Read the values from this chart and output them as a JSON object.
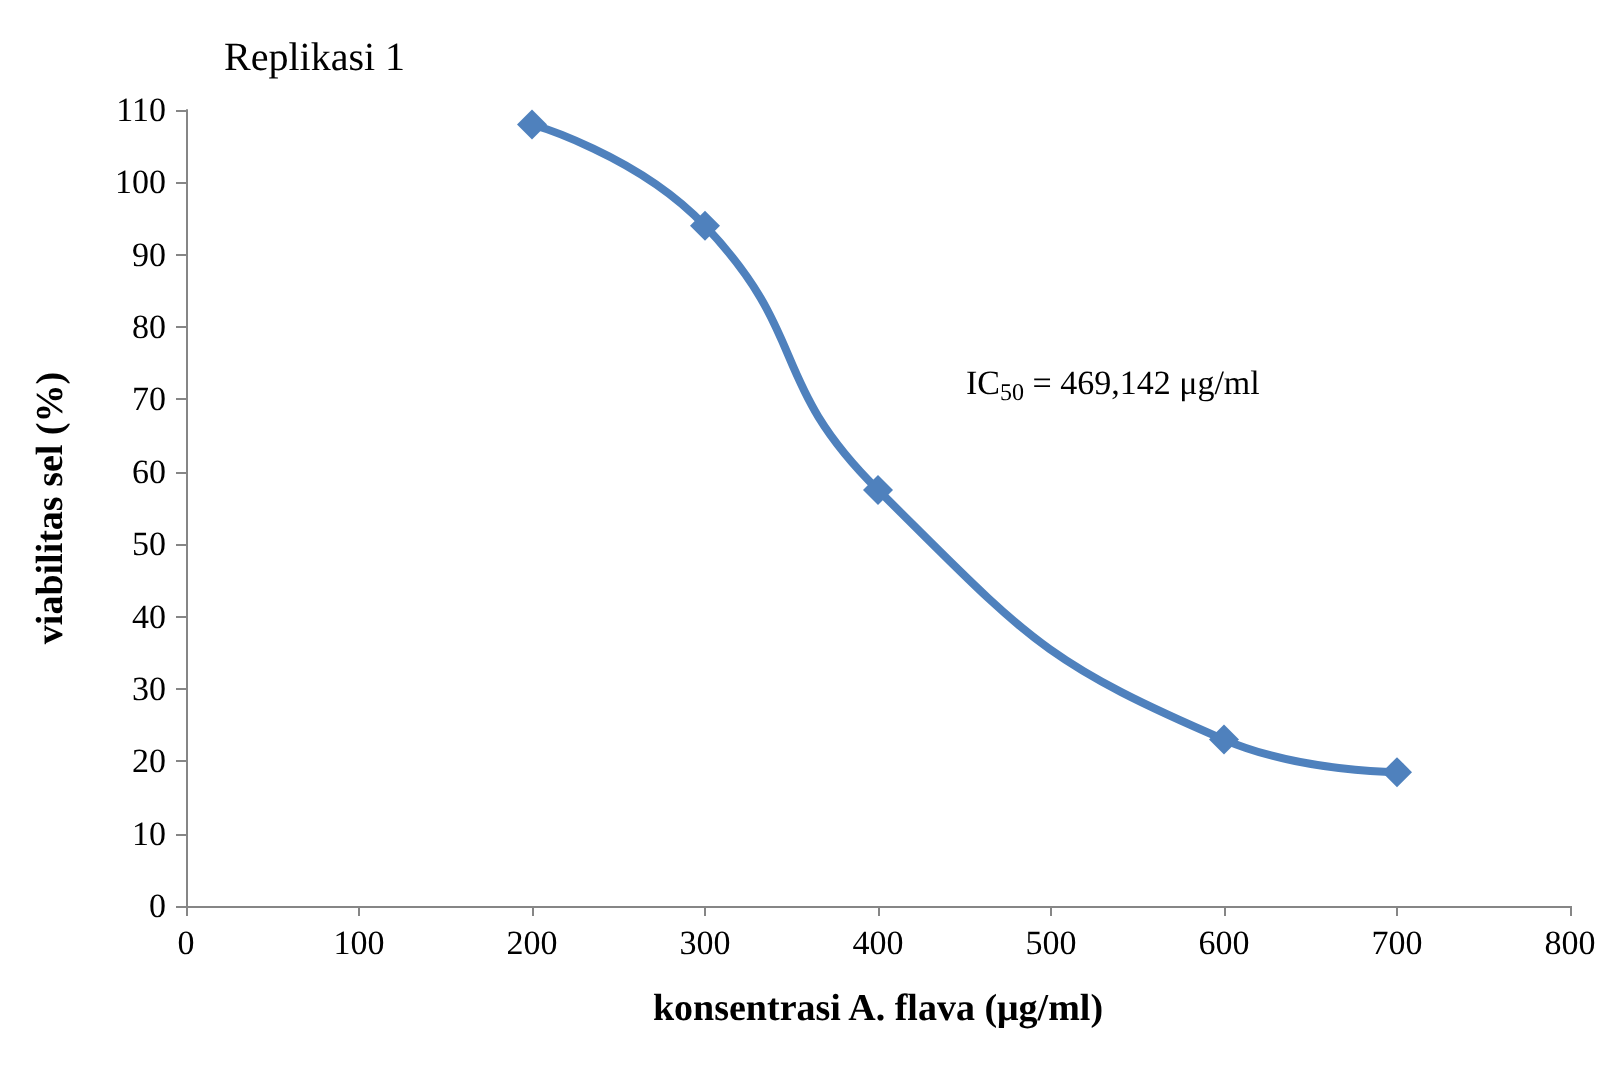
{
  "chart_data": {
    "type": "line",
    "title": "Replikasi 1",
    "xlabel": "konsentrasi A. flava (μg/ml)",
    "ylabel": "viabilitas sel (%)",
    "annotations": [
      "IC$_{50}$ = 469,142 μg/ml"
    ],
    "x": [
      200,
      300,
      400,
      600,
      700
    ],
    "series": [
      {
        "color": "#4f81bd",
        "values": [
          108,
          94,
          57.5,
          23,
          18.5
        ]
      }
    ],
    "xlim": [
      0,
      800
    ],
    "xticks": [
      0,
      100,
      200,
      300,
      400,
      500,
      600,
      700,
      800
    ],
    "ylim": [
      0,
      110
    ],
    "yticks": [
      0,
      10,
      20,
      30,
      40,
      50,
      60,
      70,
      80,
      90,
      100,
      110
    ],
    "marker": "diamond",
    "line_style": "solid"
  }
}
